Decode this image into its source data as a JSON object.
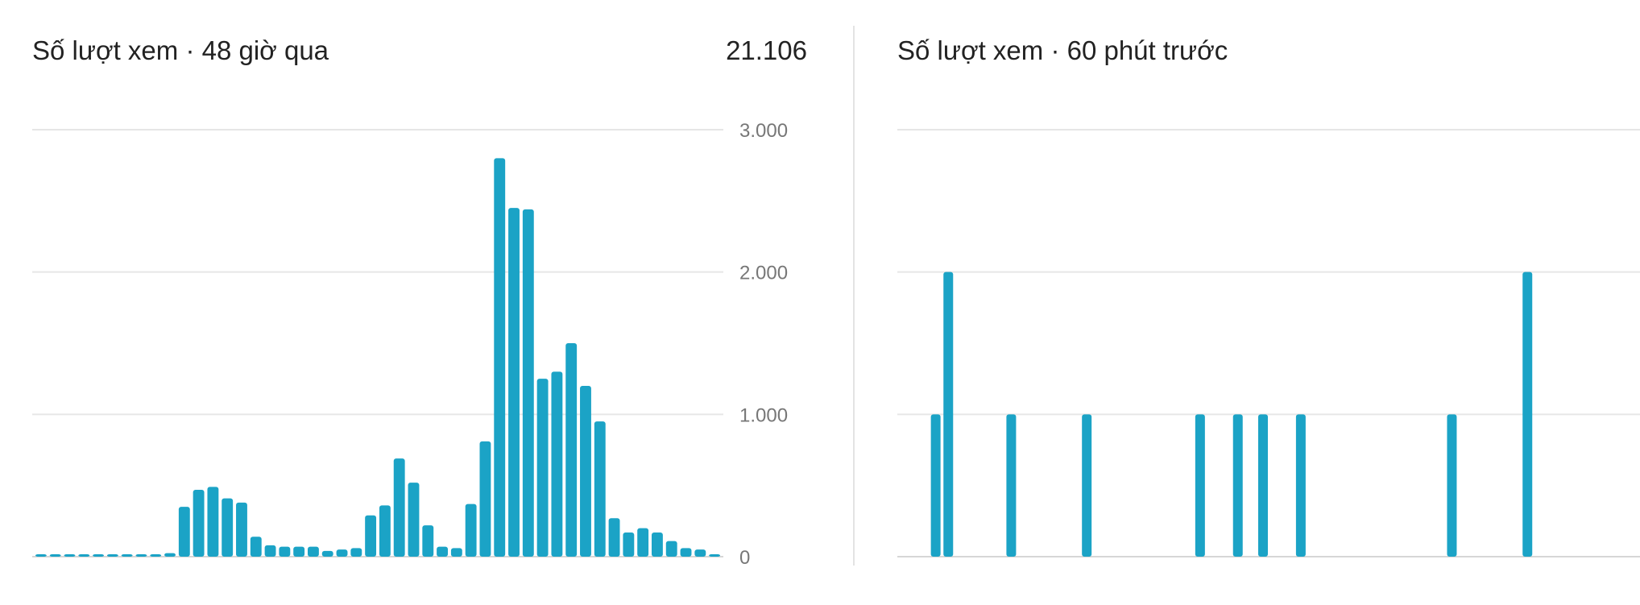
{
  "chart_data": [
    {
      "type": "bar",
      "title": "Số lượt xem · 48 giờ qua",
      "total": "21.106",
      "ylim": [
        0,
        3000
      ],
      "y_ticks": [
        0,
        1000,
        2000,
        3000
      ],
      "y_tick_labels": [
        "0",
        "1.000",
        "2.000",
        "3.000"
      ],
      "grid": true,
      "values": [
        15,
        15,
        15,
        15,
        15,
        15,
        15,
        15,
        15,
        25,
        350,
        470,
        490,
        410,
        380,
        140,
        80,
        70,
        70,
        70,
        40,
        50,
        60,
        290,
        360,
        690,
        520,
        220,
        70,
        60,
        370,
        810,
        2800,
        2450,
        2440,
        1250,
        1300,
        1500,
        1200,
        950,
        270,
        170,
        200,
        170,
        110,
        60,
        50,
        15
      ]
    },
    {
      "type": "bar",
      "title": "Số lượt xem · 60 phút trước",
      "ylim": [
        0,
        3000
      ],
      "y_ticks": [
        0,
        1000,
        2000,
        3000
      ],
      "grid": true,
      "bars": [
        {
          "minute": 1,
          "value": 1000
        },
        {
          "minute": 2,
          "value": 2000
        },
        {
          "minute": 7,
          "value": 1000
        },
        {
          "minute": 13,
          "value": 1000
        },
        {
          "minute": 22,
          "value": 1000
        },
        {
          "minute": 25,
          "value": 1000
        },
        {
          "minute": 27,
          "value": 1000
        },
        {
          "minute": 30,
          "value": 1000
        },
        {
          "minute": 42,
          "value": 1000
        },
        {
          "minute": 48,
          "value": 2000
        }
      ]
    }
  ],
  "colors": {
    "bar": "#1ba3c6",
    "grid": "#e6e6e6",
    "axis": "#d6d6d6",
    "tick_text": "#777777",
    "title_text": "#222222"
  }
}
